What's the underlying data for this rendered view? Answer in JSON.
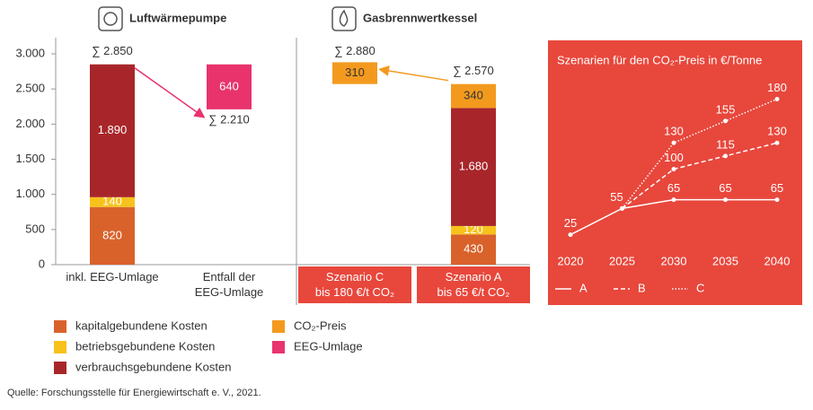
{
  "chart_data": [
    {
      "type": "stacked-bar",
      "groups": [
        "Luftwärmepumpe",
        "Gasbrennwertkessel"
      ],
      "categories": [
        "inkl. EEG-Umlage",
        "Entfall der\nEEG-Umlage",
        "Szenario C\nbis 180 €/t CO₂",
        "Szenario A\nbis 65 €/t CO₂"
      ],
      "series": [
        {
          "name": "kapitalgebundene Kosten",
          "color": "#d9622b",
          "values": [
            820,
            null,
            null,
            430
          ]
        },
        {
          "name": "betriebsgebundene Kosten",
          "color": "#f7c21b",
          "values": [
            140,
            null,
            null,
            120
          ]
        },
        {
          "name": "verbrauchsgebundene Kosten",
          "color": "#a8262a",
          "values": [
            1890,
            null,
            null,
            1680
          ],
          "value_labels": [
            "1.890",
            null,
            null,
            "1.680"
          ]
        },
        {
          "name": "CO₂-Preis",
          "color": "#f39a1e",
          "values": [
            null,
            null,
            310,
            340
          ]
        },
        {
          "name": "EEG-Umlage",
          "color": "#e8336d",
          "values": [
            null,
            640,
            null,
            null
          ]
        }
      ],
      "totals": {
        "values": [
          2850,
          2210,
          2880,
          2570
        ],
        "value_labels": [
          "∑ 2.850",
          "∑ 2.210",
          "∑ 2.880",
          "∑ 2.570"
        ]
      },
      "ylim": [
        0,
        3000
      ],
      "yticks": [
        0,
        {
          "value": 500,
          "label": "500"
        },
        {
          "value": 1000,
          "label": "1.000"
        },
        {
          "value": 1500,
          "label": "1.500"
        },
        {
          "value": 2000,
          "label": "2.000"
        },
        {
          "value": 2500,
          "label": "2.500"
        },
        {
          "value": 3000,
          "label": "3.000"
        }
      ],
      "highlight_color": "#e8473c"
    },
    {
      "type": "line",
      "title": "Szenarien für den CO₂-Preis in €/Tonne",
      "background": "#e8473c",
      "x": [
        2020,
        2025,
        2030,
        2035,
        2040
      ],
      "xlim": [
        2020,
        2040
      ],
      "xticks": [
        2020,
        2025,
        2030,
        2035,
        2040
      ],
      "ylim": [
        0,
        200
      ],
      "series": [
        {
          "name": "A",
          "color": "#ffffff",
          "dash": "solid",
          "values": [
            25,
            55,
            65,
            65,
            65
          ]
        },
        {
          "name": "B",
          "color": "#ffffff",
          "dash": "dashed",
          "values": [
            null,
            55,
            100,
            115,
            130
          ]
        },
        {
          "name": "C",
          "color": "#ffffff",
          "dash": "dotted",
          "values": [
            null,
            55,
            130,
            155,
            180
          ]
        }
      ]
    }
  ],
  "source": "Quelle: Forschungsstelle für Energiewirtschaft e. V., 2021."
}
